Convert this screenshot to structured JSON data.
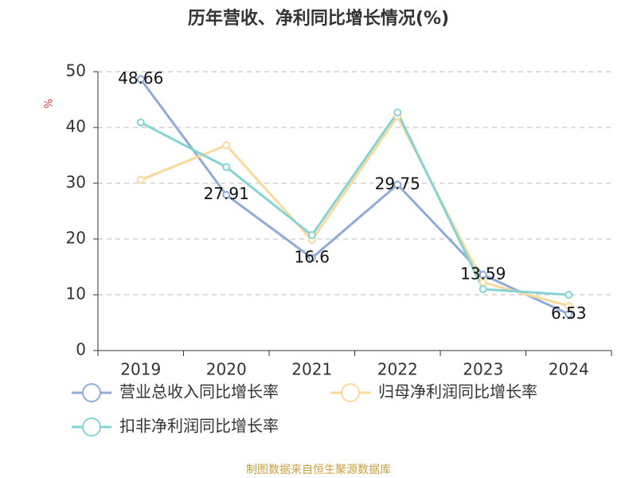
{
  "chart_data": {
    "type": "line",
    "title": "历年营收、净利同比增长情况(%)",
    "y_label": "%",
    "categories": [
      "2019",
      "2020",
      "2021",
      "2022",
      "2023",
      "2024"
    ],
    "series": [
      {
        "name": "营业总收入同比增长率",
        "color": "#8fabd8",
        "values": [
          48.66,
          27.91,
          16.6,
          29.75,
          13.59,
          6.53
        ],
        "show_labels": true
      },
      {
        "name": "归母净利润同比增长率",
        "color": "#fbd99a",
        "values": [
          30.6,
          36.8,
          19.8,
          42.0,
          12.2,
          8.0
        ],
        "show_labels": false
      },
      {
        "name": "扣非净利润同比增长率",
        "color": "#86d3d6",
        "values": [
          40.9,
          32.9,
          20.7,
          42.7,
          11.0,
          10.0
        ],
        "show_labels": false
      }
    ],
    "ylim": [
      0,
      50
    ],
    "yticks": [
      0,
      10,
      20,
      30,
      40,
      50
    ],
    "grid": true,
    "source": "制图数据来自恒生聚源数据库"
  }
}
